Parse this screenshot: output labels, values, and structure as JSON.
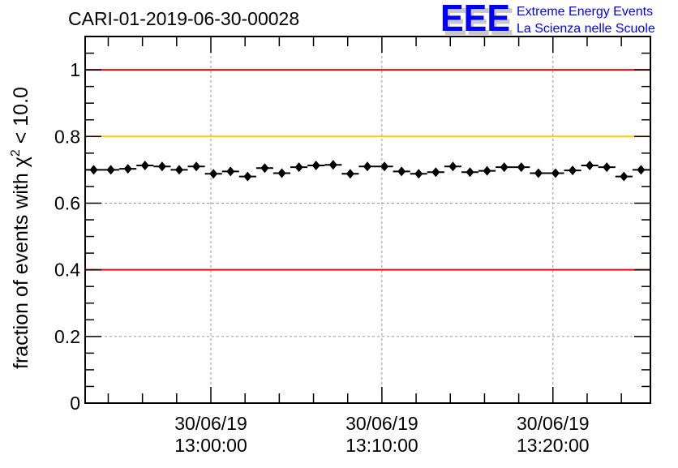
{
  "chart_data": {
    "type": "scatter",
    "title": "CARI-01-2019-06-30-00028",
    "ylabel": "fraction of events with χ² < 10.0",
    "ylabel_main": "fraction of events with χ",
    "ylabel_sup": "2",
    "ylabel_tail": " < 10.0",
    "xlabel": "",
    "x_unit": "minutes since 13:00:00",
    "xlim": [
      -7.35,
      25.7
    ],
    "ylim": [
      0,
      1.1
    ],
    "grid": true,
    "x_ticks": [
      {
        "value": 0,
        "date": "30/06/19",
        "time": "13:00:00"
      },
      {
        "value": 10,
        "date": "30/06/19",
        "time": "13:10:00"
      },
      {
        "value": 20,
        "date": "30/06/19",
        "time": "13:20:00"
      }
    ],
    "y_ticks": [
      {
        "value": 0,
        "label": "0"
      },
      {
        "value": 0.2,
        "label": "0.2"
      },
      {
        "value": 0.4,
        "label": "0.4"
      },
      {
        "value": 0.6,
        "label": "0.6"
      },
      {
        "value": 0.8,
        "label": "0.8"
      },
      {
        "value": 1,
        "label": "1"
      }
    ],
    "reference_lines": [
      {
        "y": 1.0,
        "color": "#ff0000"
      },
      {
        "y": 0.8,
        "color": "#ffcc00"
      },
      {
        "y": 0.4,
        "color": "#ff0000"
      }
    ],
    "bin_width": 1,
    "x": [
      -6.85,
      -5.85,
      -4.85,
      -3.85,
      -2.85,
      -1.85,
      -0.85,
      0.15,
      1.15,
      2.15,
      3.15,
      4.15,
      5.15,
      6.15,
      7.15,
      8.15,
      9.15,
      10.15,
      11.15,
      12.15,
      13.15,
      14.15,
      15.15,
      16.15,
      17.15,
      18.15,
      19.15,
      20.15,
      21.15,
      22.15,
      23.15,
      24.15,
      25.15
    ],
    "values": [
      0.7,
      0.7,
      0.703,
      0.713,
      0.71,
      0.7,
      0.71,
      0.688,
      0.695,
      0.68,
      0.705,
      0.69,
      0.708,
      0.713,
      0.715,
      0.688,
      0.71,
      0.71,
      0.695,
      0.688,
      0.693,
      0.71,
      0.693,
      0.697,
      0.708,
      0.708,
      0.69,
      0.69,
      0.698,
      0.713,
      0.708,
      0.68,
      0.7
    ],
    "error": 0.008,
    "marker_color": "#000000"
  },
  "logo": {
    "letters": "EEE",
    "line1": "Extreme Energy Events",
    "line2": "La Scienza nelle Scuole",
    "color": "#0000ff"
  }
}
